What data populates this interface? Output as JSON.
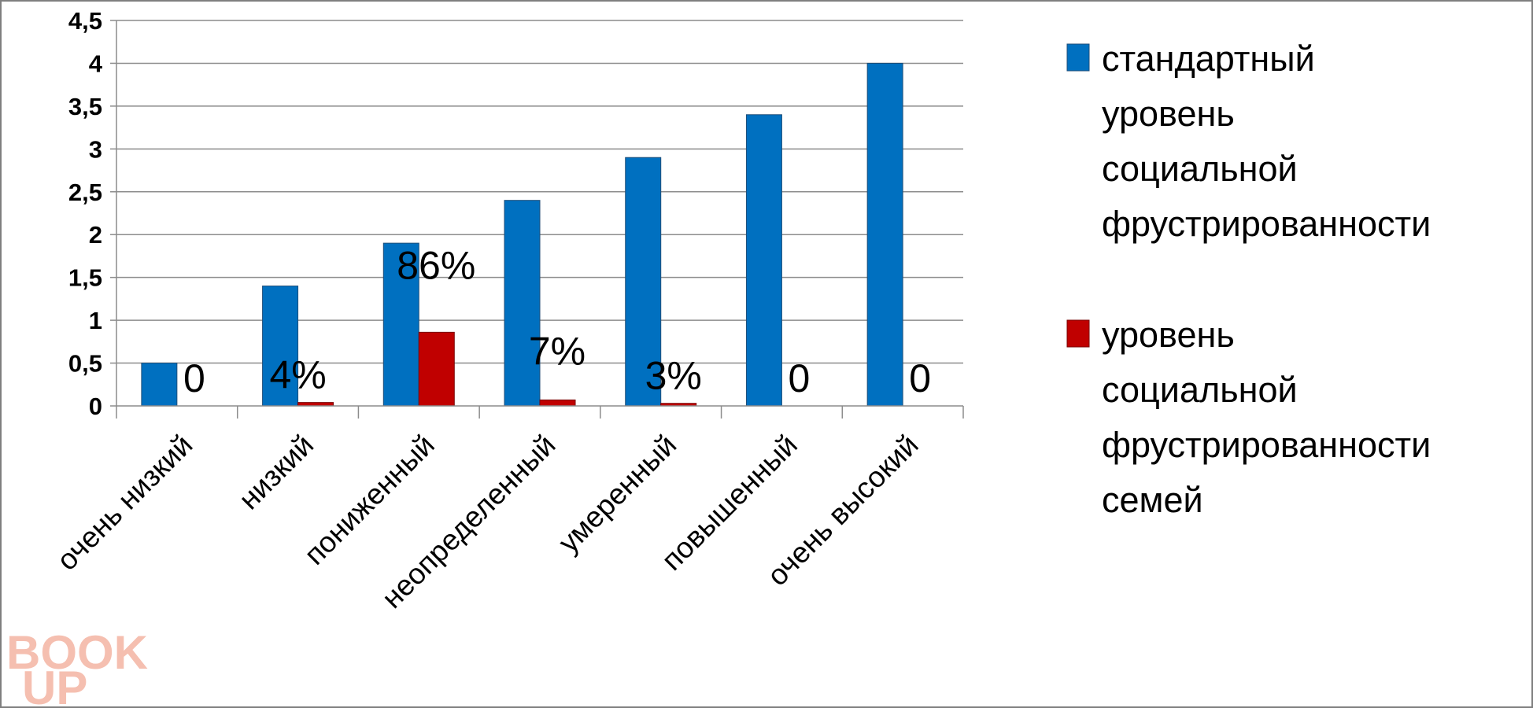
{
  "chart_data": {
    "type": "bar",
    "categories": [
      "очень низкий",
      "низкий",
      "пониженный",
      "неопределенный",
      "умеренный",
      "повышенный",
      "очень высокий"
    ],
    "series": [
      {
        "name": "стандартный уровень социальной фрустрированности",
        "color": "#0070c0",
        "values": [
          0.5,
          1.4,
          1.9,
          2.4,
          2.9,
          3.4,
          4.0
        ]
      },
      {
        "name": "уровень социальной фрустрированности семей",
        "color": "#c00000",
        "values": [
          0,
          0.04,
          0.86,
          0.07,
          0.03,
          0,
          0
        ],
        "data_labels": [
          "0",
          "4%",
          "86%",
          "7%",
          "3%",
          "0",
          "0"
        ]
      }
    ],
    "ylim": [
      0,
      4.5
    ],
    "y_ticks": [
      "0",
      "0,5",
      "1",
      "1,5",
      "2",
      "2,5",
      "3",
      "3,5",
      "4",
      "4,5"
    ],
    "grid": true,
    "legend_position": "right",
    "legend_lines": [
      [
        "стандартный",
        "уровень",
        "социальной",
        "фрустрированности"
      ],
      [
        "уровень",
        "социальной",
        "фрустрированности",
        "семей"
      ]
    ]
  },
  "watermark": {
    "line1": "BOOK",
    "line2": "UP"
  }
}
